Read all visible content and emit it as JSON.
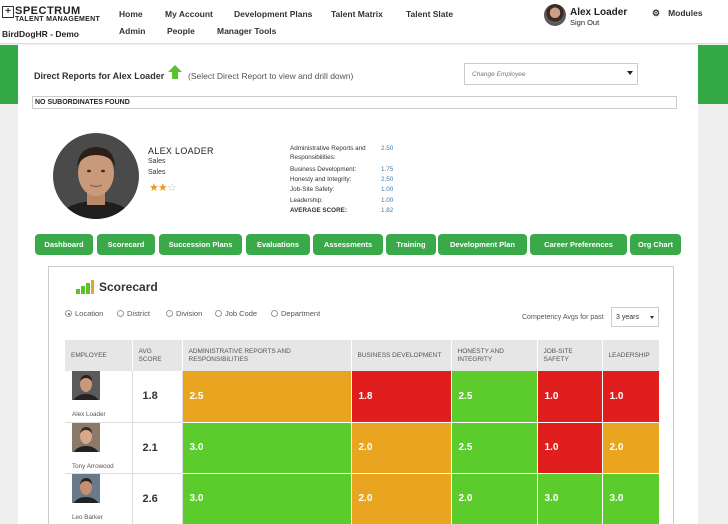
{
  "app": {
    "logo_title": "SPECTRUM",
    "logo_mark": "+",
    "logo_sub": "TALENT MANAGEMENT",
    "site_name": "BirdDogHR - Demo"
  },
  "nav": {
    "row1": [
      "Home",
      "My Account",
      "Development Plans",
      "Talent Matrix",
      "Talent Slate"
    ],
    "row2": [
      "Admin",
      "People",
      "Manager Tools"
    ]
  },
  "user": {
    "name": "Alex Loader",
    "sign_out": "Sign Out"
  },
  "modules_label": "Modules",
  "direct_reports": {
    "title": "Direct Reports for Alex Loader",
    "hint": "(Select Direct Report to view and drill down)",
    "change_employee_placeholder": "Change Employee",
    "no_subordinates": "NO SUBORDINATES FOUND"
  },
  "profile": {
    "name": "ALEX LOADER",
    "line1": "Sales",
    "line2": "Sales",
    "rating": 2,
    "rating_max": 3,
    "scores": [
      {
        "label": "Administrative Reports and Responsibilities:",
        "value": "2.50"
      },
      {
        "label": "Business Development:",
        "value": "1.75"
      },
      {
        "label": "Honesty and Integrity:",
        "value": "2.50"
      },
      {
        "label": "Job-Site Safety:",
        "value": "1.00"
      },
      {
        "label": "Leadership:",
        "value": "1.00"
      },
      {
        "label": "AVERAGE SCORE:",
        "value": "1.82"
      }
    ]
  },
  "tabs": [
    "Dashboard",
    "Scorecard",
    "Succession Plans",
    "Evaluations",
    "Assessments",
    "Training",
    "Development Plan",
    "Career Preferences",
    "Org Chart"
  ],
  "scorecard": {
    "title": "Scorecard",
    "filters": [
      "Location",
      "District",
      "Division",
      "Job Code",
      "Department"
    ],
    "selected_filter": "Location",
    "competency_label": "Competency Avgs for past",
    "competency_value": "3 years",
    "columns": [
      "EMPLOYEE",
      "AVG SCORE",
      "ADMINISTRATIVE REPORTS AND RESPONSIBILITIES",
      "BUSINESS DEVELOPMENT",
      "HONESTY AND INTEGRITY",
      "JOB-SITE SAFETY",
      "LEADERSHIP"
    ],
    "rows": [
      {
        "name": "Alex Loader",
        "avg": "1.8",
        "cells": [
          {
            "v": "2.5",
            "c": "#e9a520"
          },
          {
            "v": "1.8",
            "c": "#e01e1e"
          },
          {
            "v": "2.5",
            "c": "#5ccc2c"
          },
          {
            "v": "1.0",
            "c": "#e01e1e"
          },
          {
            "v": "1.0",
            "c": "#e01e1e"
          }
        ]
      },
      {
        "name": "Tony Arrowood",
        "avg": "2.1",
        "cells": [
          {
            "v": "3.0",
            "c": "#5ccc2c"
          },
          {
            "v": "2.0",
            "c": "#e9a520"
          },
          {
            "v": "2.5",
            "c": "#5ccc2c"
          },
          {
            "v": "1.0",
            "c": "#e01e1e"
          },
          {
            "v": "2.0",
            "c": "#e9a520"
          }
        ]
      },
      {
        "name": "Leo Barker",
        "avg": "2.6",
        "cells": [
          {
            "v": "3.0",
            "c": "#5ccc2c"
          },
          {
            "v": "2.0",
            "c": "#e9a520"
          },
          {
            "v": "2.0",
            "c": "#5ccc2c"
          },
          {
            "v": "3.0",
            "c": "#5ccc2c"
          },
          {
            "v": "3.0",
            "c": "#5ccc2c"
          }
        ]
      }
    ]
  },
  "colors": {
    "brand_green": "#35a846",
    "tab_green": "#3aa94a",
    "star": "#e99a20"
  }
}
